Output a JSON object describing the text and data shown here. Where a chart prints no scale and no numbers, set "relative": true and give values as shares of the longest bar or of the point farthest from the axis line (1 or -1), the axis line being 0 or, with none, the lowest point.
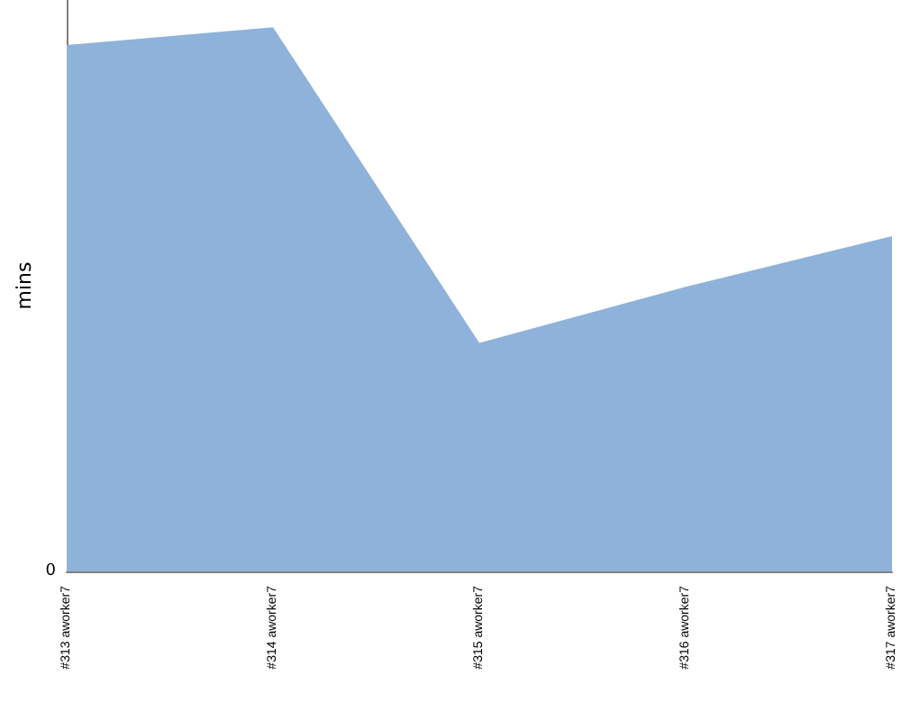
{
  "chart_data": {
    "type": "area",
    "ylabel": "mins",
    "relative": true,
    "categories": [
      "#313 aworker7",
      "#314 aworker7",
      "#315 aworker7",
      "#316 aworker7",
      "#317 aworker7"
    ],
    "series": [
      {
        "color": "#8fb2da",
        "values": [
          0.967,
          1,
          0.42,
          0.523,
          0.616
        ]
      }
    ],
    "annotations": [
      "0"
    ],
    "grid": false
  }
}
